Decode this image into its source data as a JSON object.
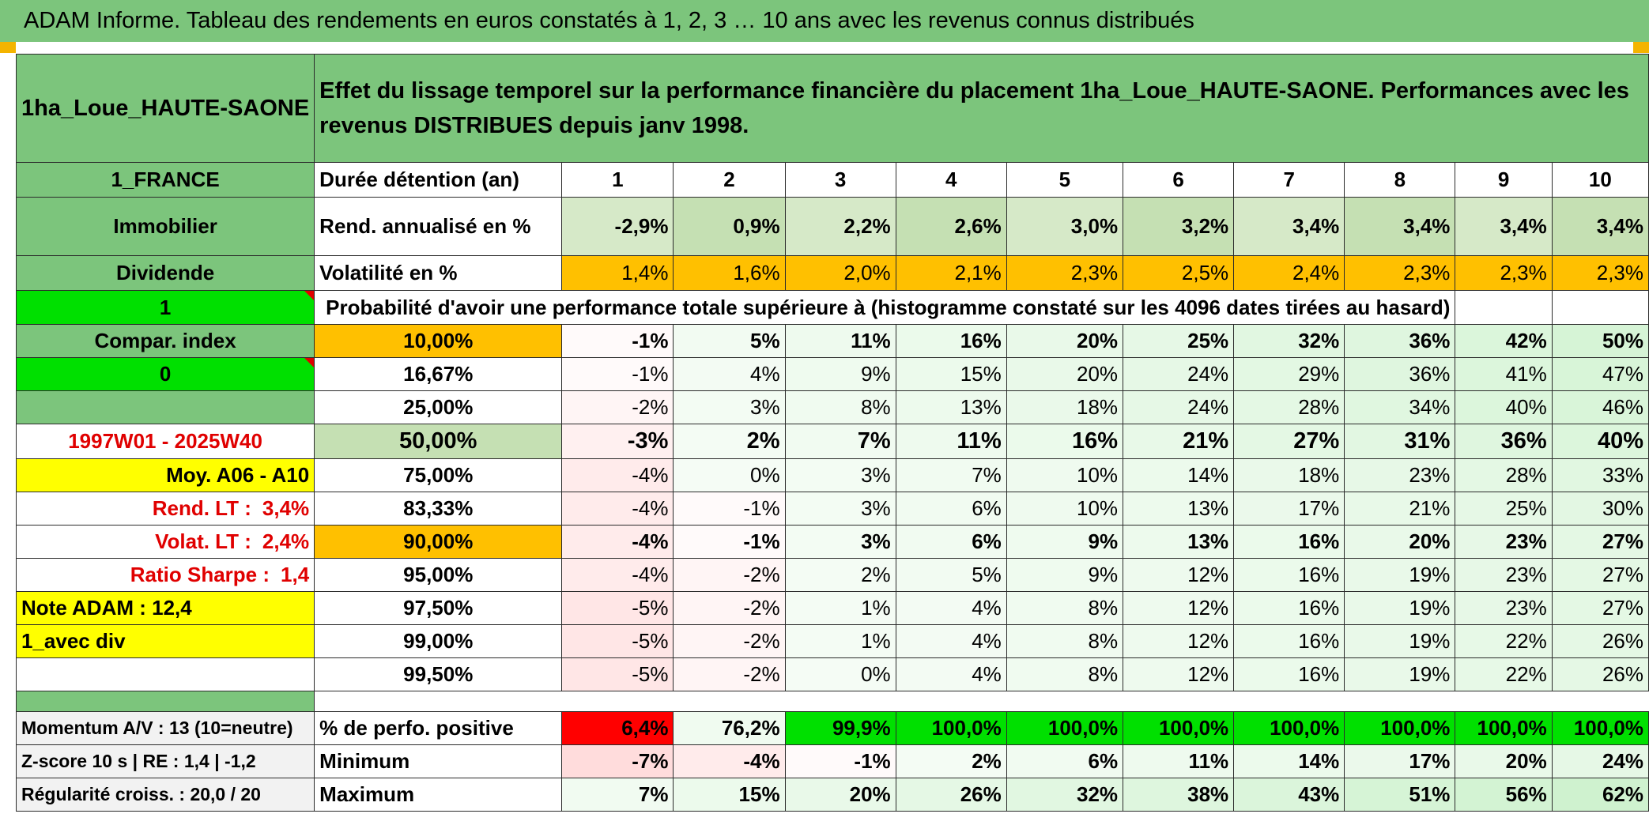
{
  "title": "ADAM Informe. Tableau des rendements en euros constatés à 1, 2, 3 … 10 ans avec les revenus connus distribués",
  "colors": {
    "header_green": "#7cc57c",
    "light_green": "#c5e0b3",
    "orange": "#ffc000",
    "yellow": "#ffff00",
    "bright_green": "#00e000",
    "red": "#ff0000",
    "red_text": "#e00000"
  },
  "header": {
    "placement": "1ha_Loue_HAUTE-SAONE",
    "description": "Effet du lissage temporel sur la performance financière du placement 1ha_Loue_HAUTE-SAONE. Performances avec les revenus DISTRIBUES depuis janv 1998."
  },
  "left": {
    "country": "1_FRANCE",
    "category": "Immobilier",
    "dividend": "Dividende",
    "flag1": "1",
    "compar_index": "Compar. index",
    "flag0": "0",
    "period": "1997W01 - 2025W40",
    "moy": "Moy. A06 - A10",
    "rend_lt_label": "Rend. LT :",
    "rend_lt_value": "3,4%",
    "volat_lt_label": "Volat. LT :",
    "volat_lt_value": "2,4%",
    "sharpe_label": "Ratio Sharpe :",
    "sharpe_value": "1,4",
    "note": "Note ADAM : 12,4",
    "div_mode": "1_avec div",
    "momentum": "Momentum A/V : 13 (10=neutre)",
    "zscore": "Z-score 10 s | RE : 1,4 | -1,2",
    "regularite": "Régularité croiss. : 20,0 / 20"
  },
  "labels": {
    "duration": "Durée détention (an)",
    "rend": "Rend. annualisé en %",
    "volat": "Volatilité en %",
    "prob": "Probabilité d'avoir une performance totale supérieure à (histogramme constaté sur les 4096 dates tirées au hasard)",
    "positive": "% de perfo. positive",
    "minimum": "Minimum",
    "maximum": "Maximum"
  },
  "years": [
    "1",
    "2",
    "3",
    "4",
    "5",
    "6",
    "7",
    "8",
    "9",
    "10"
  ],
  "rend": [
    "-2,9%",
    "0,9%",
    "2,2%",
    "2,6%",
    "3,0%",
    "3,2%",
    "3,4%",
    "3,4%",
    "3,4%",
    "3,4%"
  ],
  "volat": [
    "1,4%",
    "1,6%",
    "2,0%",
    "2,1%",
    "2,3%",
    "2,5%",
    "2,4%",
    "2,3%",
    "2,3%",
    "2,3%"
  ],
  "percentiles": [
    {
      "p": "10,00%",
      "values": [
        "-1%",
        "5%",
        "11%",
        "16%",
        "20%",
        "25%",
        "32%",
        "36%",
        "42%",
        "50%"
      ]
    },
    {
      "p": "16,67%",
      "values": [
        "-1%",
        "4%",
        "9%",
        "15%",
        "20%",
        "24%",
        "29%",
        "36%",
        "41%",
        "47%"
      ]
    },
    {
      "p": "25,00%",
      "values": [
        "-2%",
        "3%",
        "8%",
        "13%",
        "18%",
        "24%",
        "28%",
        "34%",
        "40%",
        "46%"
      ]
    },
    {
      "p": "50,00%",
      "values": [
        "-3%",
        "2%",
        "7%",
        "11%",
        "16%",
        "21%",
        "27%",
        "31%",
        "36%",
        "40%"
      ]
    },
    {
      "p": "75,00%",
      "values": [
        "-4%",
        "0%",
        "3%",
        "7%",
        "10%",
        "14%",
        "18%",
        "23%",
        "28%",
        "33%"
      ]
    },
    {
      "p": "83,33%",
      "values": [
        "-4%",
        "-1%",
        "3%",
        "6%",
        "10%",
        "13%",
        "17%",
        "21%",
        "25%",
        "30%"
      ]
    },
    {
      "p": "90,00%",
      "values": [
        "-4%",
        "-1%",
        "3%",
        "6%",
        "9%",
        "13%",
        "16%",
        "20%",
        "23%",
        "27%"
      ]
    },
    {
      "p": "95,00%",
      "values": [
        "-4%",
        "-2%",
        "2%",
        "5%",
        "9%",
        "12%",
        "16%",
        "19%",
        "23%",
        "27%"
      ]
    },
    {
      "p": "97,50%",
      "values": [
        "-5%",
        "-2%",
        "1%",
        "4%",
        "8%",
        "12%",
        "16%",
        "19%",
        "23%",
        "27%"
      ]
    },
    {
      "p": "99,00%",
      "values": [
        "-5%",
        "-2%",
        "1%",
        "4%",
        "8%",
        "12%",
        "16%",
        "19%",
        "22%",
        "26%"
      ]
    },
    {
      "p": "99,50%",
      "values": [
        "-5%",
        "-2%",
        "0%",
        "4%",
        "8%",
        "12%",
        "16%",
        "19%",
        "22%",
        "26%"
      ]
    }
  ],
  "positive": [
    "6,4%",
    "76,2%",
    "99,9%",
    "100,0%",
    "100,0%",
    "100,0%",
    "100,0%",
    "100,0%",
    "100,0%",
    "100,0%"
  ],
  "minimum": [
    "-7%",
    "-4%",
    "-1%",
    "2%",
    "6%",
    "11%",
    "14%",
    "17%",
    "20%",
    "24%"
  ],
  "maximum": [
    "7%",
    "15%",
    "20%",
    "26%",
    "32%",
    "38%",
    "43%",
    "51%",
    "56%",
    "62%"
  ]
}
